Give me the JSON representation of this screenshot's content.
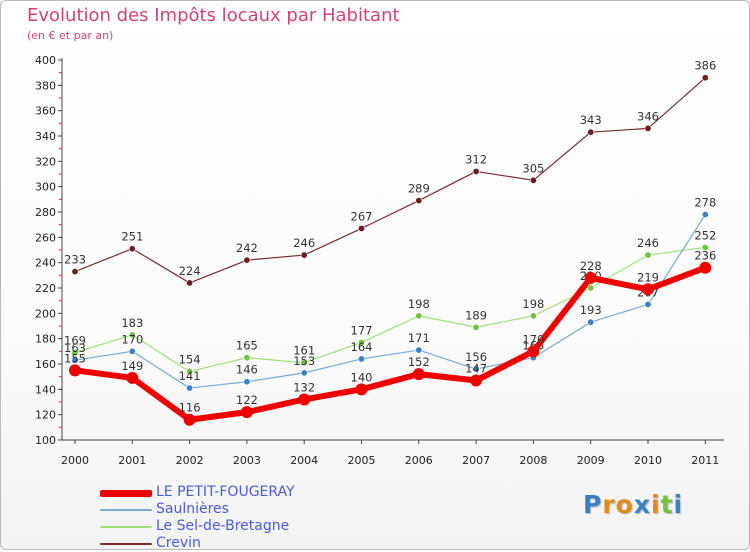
{
  "chart_data": {
    "type": "line",
    "title": "Evolution des Impôts locaux par Habitant",
    "subtitle": "(en € et par an)",
    "xlabel": "",
    "ylabel": "",
    "ylim": [
      100,
      400
    ],
    "yticks": [
      100,
      120,
      140,
      160,
      180,
      200,
      220,
      240,
      260,
      280,
      300,
      320,
      340,
      360,
      380,
      400
    ],
    "categories": [
      "2000",
      "2001",
      "2002",
      "2003",
      "2004",
      "2005",
      "2006",
      "2007",
      "2008",
      "2009",
      "2010",
      "2011"
    ],
    "grid": false,
    "legend_position": "bottom-left",
    "series": [
      {
        "name": "Crevin",
        "color": "#7a2a2e",
        "dot": "#6b1e22",
        "values": [
          233,
          251,
          224,
          242,
          246,
          267,
          289,
          312,
          305,
          343,
          346,
          386
        ]
      },
      {
        "name": "Le Sel-de-Bretagne",
        "color": "#9fe07a",
        "dot": "#72c43e",
        "values": [
          169,
          183,
          154,
          165,
          161,
          177,
          198,
          189,
          198,
          220,
          246,
          252
        ]
      },
      {
        "name": "Saulnières",
        "color": "#7aa9d6",
        "dot": "#3b82c4",
        "values": [
          163,
          170,
          141,
          146,
          153,
          164,
          171,
          156,
          165,
          193,
          207,
          278
        ]
      },
      {
        "name": "LE PETIT-FOUGERAY",
        "color": "#ee0000",
        "dot": "#ee0000",
        "values": [
          155,
          149,
          116,
          122,
          132,
          140,
          152,
          147,
          170,
          228,
          219,
          236
        ]
      }
    ],
    "data_labels": {
      "Crevin": [
        "233",
        "251",
        "224",
        "242",
        "246",
        "267",
        "289",
        "312",
        "305",
        "343",
        "346",
        "386"
      ],
      "Le Sel-de-Bretagne": [
        "169",
        "183",
        "154",
        "165",
        "161",
        "177",
        "198",
        "189",
        "198",
        "220",
        "246",
        "252"
      ],
      "Saulnières": [
        "163",
        "170",
        "141",
        "146",
        "153",
        "164",
        "171",
        "156",
        "165",
        "193",
        "207",
        "278"
      ],
      "LE PETIT-FOUGERAY": [
        "155",
        "149",
        "116",
        "122",
        "132",
        "140",
        "152",
        "147",
        "170",
        "228",
        "219",
        "236"
      ]
    }
  },
  "legend": {
    "items": [
      {
        "label": "LE PETIT-FOUGERAY",
        "color": "#ee0000"
      },
      {
        "label": "Saulnières",
        "color": "#7aa9d6"
      },
      {
        "label": "Le Sel-de-Bretagne",
        "color": "#9fe07a"
      },
      {
        "label": "Crevin",
        "color": "#7a2a2e"
      }
    ]
  },
  "logo": {
    "text": "Proxiti",
    "letter_colors": [
      "#3b82c4",
      "#e38b1c",
      "#e38b1c",
      "#3b82c4",
      "#e38b1c",
      "#72c43e",
      "#3b82c4"
    ]
  }
}
